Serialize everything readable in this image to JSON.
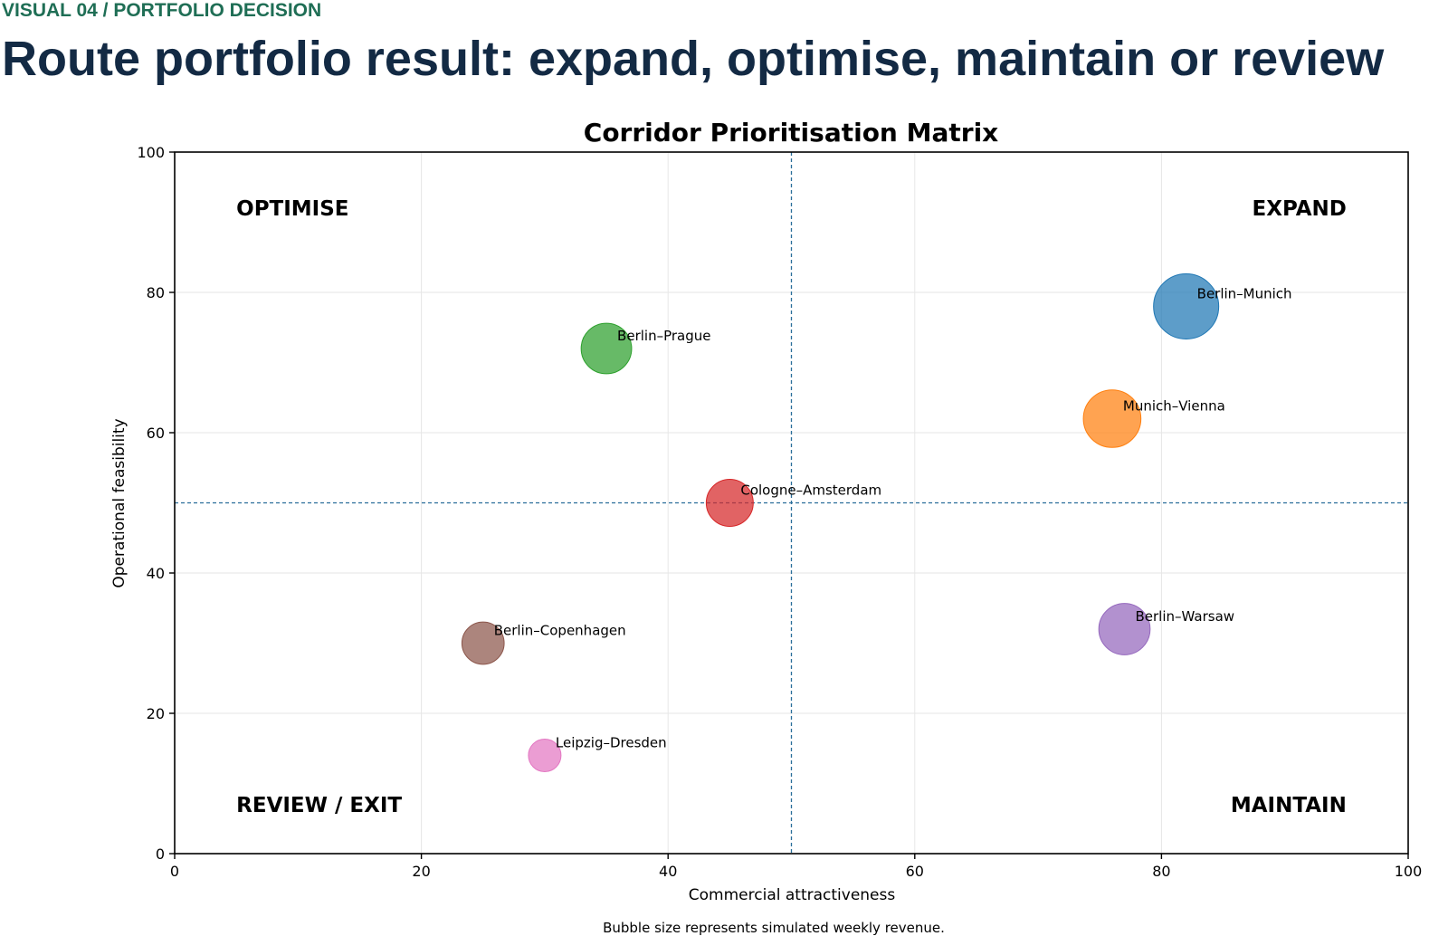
{
  "header": {
    "eyebrow": "VISUAL 04 / PORTFOLIO DECISION",
    "title": "Route portfolio result: expand, optimise, maintain or review"
  },
  "chart_data": {
    "type": "scatter",
    "title": "Corridor Prioritisation Matrix",
    "xlabel": "Commercial attractiveness",
    "ylabel": "Operational feasibility",
    "xlim": [
      0,
      100
    ],
    "ylim": [
      0,
      100
    ],
    "xticks": [
      "0",
      "20",
      "40",
      "60",
      "80",
      "100"
    ],
    "yticks": [
      "0",
      "20",
      "40",
      "60",
      "80",
      "100"
    ],
    "grid": true,
    "threshold_x": 50,
    "threshold_y": 50,
    "quadrants": [
      {
        "label": "OPTIMISE",
        "position": "top-left"
      },
      {
        "label": "EXPAND",
        "position": "top-right"
      },
      {
        "label": "REVIEW / EXIT",
        "position": "bottom-left"
      },
      {
        "label": "MAINTAIN",
        "position": "bottom-right"
      }
    ],
    "points": [
      {
        "label": "Berlin–Munich",
        "x": 82,
        "y": 78,
        "size": 1.0,
        "color": "#1f77b4"
      },
      {
        "label": "Munich–Vienna",
        "x": 76,
        "y": 62,
        "size": 0.78,
        "color": "#ff7f0e"
      },
      {
        "label": "Berlin–Prague",
        "x": 35,
        "y": 72,
        "size": 0.6,
        "color": "#2ca02c"
      },
      {
        "label": "Cologne–Amsterdam",
        "x": 45,
        "y": 50,
        "size": 0.52,
        "color": "#d62728"
      },
      {
        "label": "Berlin–Warsaw",
        "x": 77,
        "y": 32,
        "size": 0.62,
        "color": "#9467bd"
      },
      {
        "label": "Berlin–Copenhagen",
        "x": 25,
        "y": 30,
        "size": 0.42,
        "color": "#8c564b"
      },
      {
        "label": "Leipzig–Dresden",
        "x": 30,
        "y": 14,
        "size": 0.25,
        "color": "#e377c2"
      }
    ],
    "footnote": "Bubble size represents simulated weekly revenue."
  }
}
